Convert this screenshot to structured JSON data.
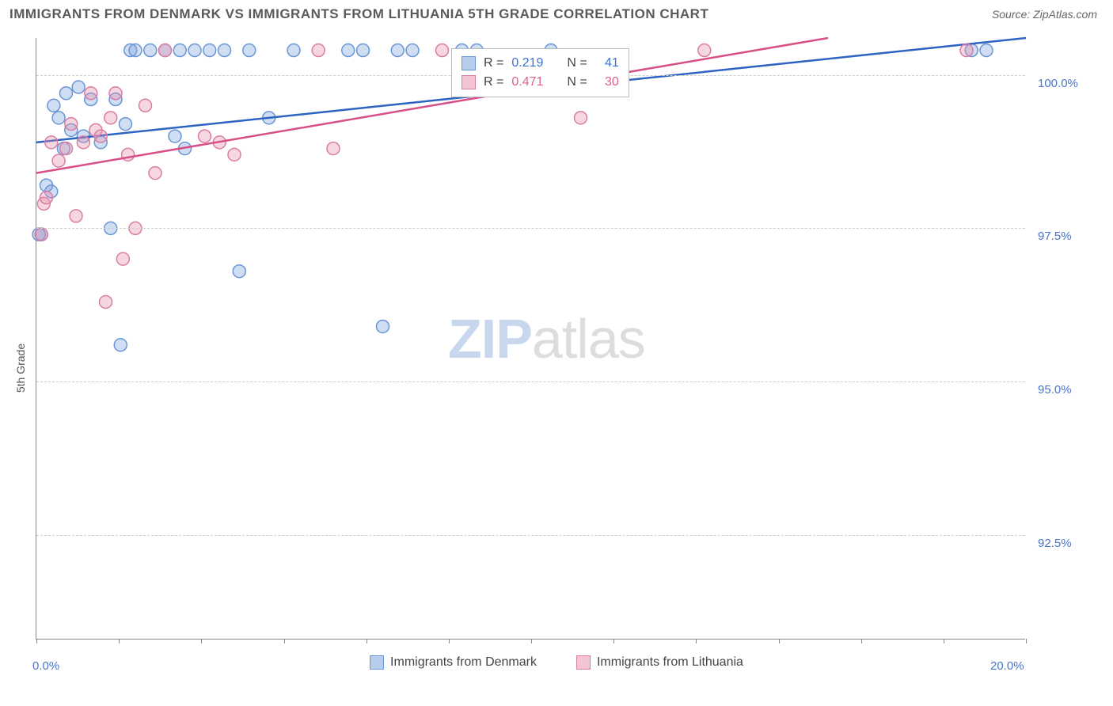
{
  "title": "IMMIGRANTS FROM DENMARK VS IMMIGRANTS FROM LITHUANIA 5TH GRADE CORRELATION CHART",
  "source": "Source: ZipAtlas.com",
  "ylabel": "5th Grade",
  "watermark": {
    "zip": "ZIP",
    "atlas": "atlas"
  },
  "chart": {
    "type": "scatter",
    "xlim": [
      0.0,
      20.0
    ],
    "ylim": [
      90.8,
      100.6
    ],
    "x_ticks": [
      0.0,
      20.0
    ],
    "x_tick_labels": [
      "0.0%",
      "20.0%"
    ],
    "x_minor_ticks": [
      1.67,
      3.33,
      5.0,
      6.67,
      8.33,
      10.0,
      11.67,
      13.33,
      15.0,
      16.67,
      18.33
    ],
    "y_ticks": [
      92.5,
      95.0,
      97.5,
      100.0
    ],
    "y_tick_labels": [
      "92.5%",
      "95.0%",
      "97.5%",
      "100.0%"
    ],
    "background_color": "#ffffff",
    "grid_color": "#cccccc",
    "marker_radius": 8,
    "series": [
      {
        "name": "Immigrants from Denmark",
        "fill": "rgba(120,160,220,0.35)",
        "stroke": "#6a95d6",
        "swatch_fill": "#b8cdec",
        "swatch_stroke": "#6a95d6",
        "r_value": "0.219",
        "n_value": "41",
        "trend": {
          "x1": 0.0,
          "y1": 98.9,
          "x2": 20.0,
          "y2": 100.6,
          "color": "#2d64c4",
          "width": 2.5
        },
        "points": [
          [
            0.05,
            97.4
          ],
          [
            0.1,
            97.4
          ],
          [
            0.2,
            98.2
          ],
          [
            0.3,
            98.1
          ],
          [
            0.35,
            99.5
          ],
          [
            0.45,
            99.3
          ],
          [
            0.55,
            98.8
          ],
          [
            0.6,
            99.7
          ],
          [
            0.7,
            99.1
          ],
          [
            0.85,
            99.8
          ],
          [
            0.95,
            99.0
          ],
          [
            1.1,
            99.6
          ],
          [
            1.3,
            98.9
          ],
          [
            1.5,
            97.5
          ],
          [
            1.6,
            99.6
          ],
          [
            1.7,
            95.6
          ],
          [
            1.8,
            99.2
          ],
          [
            1.9,
            100.4
          ],
          [
            2.0,
            100.4
          ],
          [
            2.3,
            100.4
          ],
          [
            2.6,
            100.4
          ],
          [
            2.8,
            99.0
          ],
          [
            2.9,
            100.4
          ],
          [
            3.0,
            98.8
          ],
          [
            3.2,
            100.4
          ],
          [
            3.5,
            100.4
          ],
          [
            3.8,
            100.4
          ],
          [
            4.1,
            96.8
          ],
          [
            4.3,
            100.4
          ],
          [
            4.7,
            99.3
          ],
          [
            5.2,
            100.4
          ],
          [
            6.3,
            100.4
          ],
          [
            6.6,
            100.4
          ],
          [
            7.0,
            95.9
          ],
          [
            7.3,
            100.4
          ],
          [
            7.6,
            100.4
          ],
          [
            8.6,
            100.4
          ],
          [
            8.9,
            100.4
          ],
          [
            10.4,
            100.4
          ],
          [
            18.9,
            100.4
          ],
          [
            19.2,
            100.4
          ]
        ]
      },
      {
        "name": "Immigrants from Lithuania",
        "fill": "rgba(230,140,170,0.35)",
        "stroke": "#d97da3",
        "swatch_fill": "#f2c4d5",
        "swatch_stroke": "#d97da3",
        "r_value": "0.471",
        "n_value": "30",
        "trend": {
          "x1": 0.0,
          "y1": 98.4,
          "x2": 16.0,
          "y2": 100.6,
          "color": "#d84f87",
          "width": 2.5
        },
        "points": [
          [
            0.1,
            97.4
          ],
          [
            0.15,
            97.9
          ],
          [
            0.2,
            98.0
          ],
          [
            0.3,
            98.9
          ],
          [
            0.45,
            98.6
          ],
          [
            0.6,
            98.8
          ],
          [
            0.7,
            99.2
          ],
          [
            0.8,
            97.7
          ],
          [
            0.95,
            98.9
          ],
          [
            1.1,
            99.7
          ],
          [
            1.2,
            99.1
          ],
          [
            1.3,
            99.0
          ],
          [
            1.4,
            96.3
          ],
          [
            1.5,
            99.3
          ],
          [
            1.6,
            99.7
          ],
          [
            1.75,
            97.0
          ],
          [
            1.85,
            98.7
          ],
          [
            2.0,
            97.5
          ],
          [
            2.2,
            99.5
          ],
          [
            2.4,
            98.4
          ],
          [
            2.6,
            100.4
          ],
          [
            3.4,
            99.0
          ],
          [
            3.7,
            98.9
          ],
          [
            4.0,
            98.7
          ],
          [
            5.7,
            100.4
          ],
          [
            6.0,
            98.8
          ],
          [
            8.2,
            100.4
          ],
          [
            11.0,
            99.3
          ],
          [
            13.5,
            100.4
          ],
          [
            18.8,
            100.4
          ]
        ]
      }
    ]
  },
  "legend_top": {
    "r_label": "R =",
    "n_label": "N ="
  },
  "legend_bottom": {
    "items": [
      "Immigrants from Denmark",
      "Immigrants from Lithuania"
    ]
  }
}
